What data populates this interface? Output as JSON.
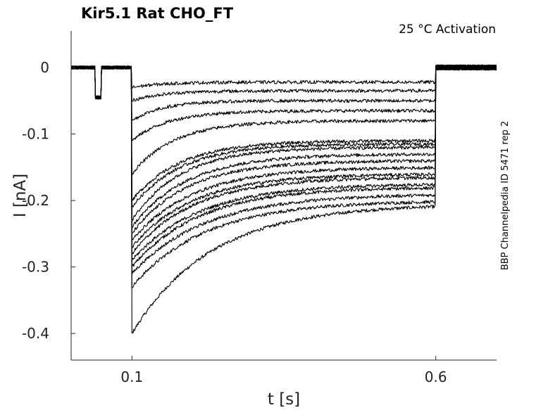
{
  "chart_data": {
    "type": "line",
    "title": "Kir5.1  Rat  CHO_FT",
    "subtitle": "25 °C  Activation",
    "side_note": "BBP Channelpedia ID 5471 rep 2",
    "xlabel": "t [s]",
    "ylabel": "I [nA]",
    "xlim": [
      -0.0,
      0.7
    ],
    "ylim": [
      -0.44,
      0.055
    ],
    "xticks": [
      {
        "value": 0.1,
        "label": "0.1"
      },
      {
        "value": 0.6,
        "label": "0.6"
      }
    ],
    "yticks": [
      {
        "value": 0,
        "label": "0"
      },
      {
        "value": -0.1,
        "label": "-0.1"
      },
      {
        "value": -0.2,
        "label": "-0.2"
      },
      {
        "value": -0.3,
        "label": "-0.3"
      },
      {
        "value": -0.4,
        "label": "-0.4"
      }
    ],
    "grid": false,
    "legend": "none",
    "line_color": "#000000",
    "protocol": {
      "prepulse": [
        0.04,
        0.05
      ],
      "prepulse_current": -0.045,
      "step_on": 0.1,
      "step_off": 0.6
    },
    "series": [
      {
        "peak": -0.4,
        "end": -0.205,
        "tau": 0.13
      },
      {
        "peak": -0.33,
        "end": -0.2,
        "tau": 0.12
      },
      {
        "peak": -0.31,
        "end": -0.19,
        "tau": 0.12
      },
      {
        "peak": -0.3,
        "end": -0.18,
        "tau": 0.11
      },
      {
        "peak": -0.29,
        "end": -0.175,
        "tau": 0.11
      },
      {
        "peak": -0.28,
        "end": -0.165,
        "tau": 0.1
      },
      {
        "peak": -0.27,
        "end": -0.16,
        "tau": 0.1
      },
      {
        "peak": -0.26,
        "end": -0.15,
        "tau": 0.1
      },
      {
        "peak": -0.25,
        "end": -0.14,
        "tau": 0.09
      },
      {
        "peak": -0.24,
        "end": -0.13,
        "tau": 0.09
      },
      {
        "peak": -0.23,
        "end": -0.12,
        "tau": 0.08
      },
      {
        "peak": -0.21,
        "end": -0.115,
        "tau": 0.08
      },
      {
        "peak": -0.2,
        "end": -0.11,
        "tau": 0.08
      },
      {
        "peak": -0.16,
        "end": -0.08,
        "tau": 0.07
      },
      {
        "peak": -0.11,
        "end": -0.065,
        "tau": 0.06
      },
      {
        "peak": -0.08,
        "end": -0.05,
        "tau": 0.05
      },
      {
        "peak": -0.05,
        "end": -0.035,
        "tau": 0.05
      },
      {
        "peak": -0.03,
        "end": -0.022,
        "tau": 0.05
      }
    ]
  }
}
